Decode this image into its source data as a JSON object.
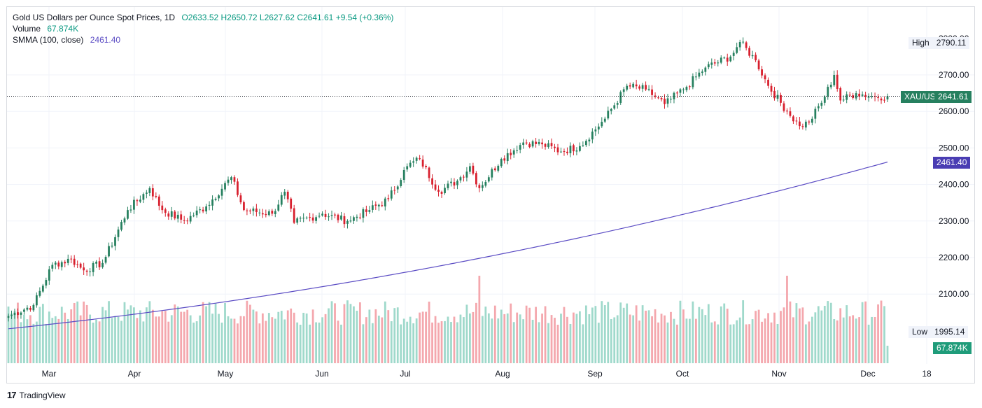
{
  "legend": {
    "title": "Gold US Dollars per Ounce Spot Prices, 1D",
    "open": "O2633.52",
    "high": "H2650.72",
    "low": "L2627.62",
    "close": "C2641.61",
    "change": "+9.54 (+0.36%)",
    "volume_label": "Volume",
    "volume_value": "67.874K",
    "smma_label": "SMMA (100, close)",
    "smma_value": "2461.40"
  },
  "price_axis": {
    "ticks": [
      "2700.00",
      "2600.00",
      "2500.00",
      "2400.00",
      "2300.00",
      "2200.00",
      "2100.00"
    ],
    "tick_values": [
      2700,
      2600,
      2500,
      2400,
      2300,
      2200,
      2100
    ]
  },
  "time_axis": {
    "labels": [
      "Mar",
      "Apr",
      "May",
      "Jun",
      "Jul",
      "Aug",
      "Sep",
      "Oct",
      "Nov",
      "Dec",
      "18"
    ]
  },
  "tags": {
    "high_label": "High",
    "high_value": "2790.11",
    "symbol": "XAU/USD",
    "last_price": "2641.61",
    "smma_value": "2461.40",
    "low_label": "Low",
    "low_value": "1995.14",
    "volume_value": "67.874K"
  },
  "colors": {
    "up": "#26805f",
    "down": "#d8202e",
    "volume_up": "#9fd9cb",
    "volume_down": "#f4a7ad",
    "smma": "#5b4cc4",
    "grid": "#f0f3fa"
  },
  "footer": {
    "brand": "TradingView"
  },
  "chart_data": {
    "type": "candlestick",
    "title": "Gold US Dollars per Ounce Spot Prices, 1D",
    "x_axis": [
      "Mar",
      "Apr",
      "May",
      "Jun",
      "Jul",
      "Aug",
      "Sep",
      "Oct",
      "Nov",
      "Dec",
      "18"
    ],
    "ylim": [
      1995.14,
      2790.11
    ],
    "anchors": [
      {
        "day": 0,
        "close": 2040
      },
      {
        "day": 8,
        "close": 2070
      },
      {
        "day": 14,
        "close": 2180
      },
      {
        "day": 20,
        "close": 2195
      },
      {
        "day": 24,
        "close": 2165
      },
      {
        "day": 30,
        "close": 2185
      },
      {
        "day": 38,
        "close": 2330
      },
      {
        "day": 45,
        "close": 2390
      },
      {
        "day": 49,
        "close": 2330
      },
      {
        "day": 56,
        "close": 2300
      },
      {
        "day": 63,
        "close": 2340
      },
      {
        "day": 71,
        "close": 2420
      },
      {
        "day": 75,
        "close": 2330
      },
      {
        "day": 84,
        "close": 2320
      },
      {
        "day": 88,
        "close": 2380
      },
      {
        "day": 91,
        "close": 2295
      },
      {
        "day": 100,
        "close": 2320
      },
      {
        "day": 108,
        "close": 2300
      },
      {
        "day": 115,
        "close": 2330
      },
      {
        "day": 121,
        "close": 2360
      },
      {
        "day": 127,
        "close": 2450
      },
      {
        "day": 131,
        "close": 2470
      },
      {
        "day": 137,
        "close": 2380
      },
      {
        "day": 143,
        "close": 2410
      },
      {
        "day": 147,
        "close": 2450
      },
      {
        "day": 150,
        "close": 2390
      },
      {
        "day": 157,
        "close": 2470
      },
      {
        "day": 164,
        "close": 2515
      },
      {
        "day": 170,
        "close": 2510
      },
      {
        "day": 176,
        "close": 2490
      },
      {
        "day": 182,
        "close": 2505
      },
      {
        "day": 190,
        "close": 2580
      },
      {
        "day": 197,
        "close": 2670
      },
      {
        "day": 203,
        "close": 2660
      },
      {
        "day": 209,
        "close": 2620
      },
      {
        "day": 215,
        "close": 2660
      },
      {
        "day": 222,
        "close": 2720
      },
      {
        "day": 230,
        "close": 2750
      },
      {
        "day": 233,
        "close": 2790
      },
      {
        "day": 238,
        "close": 2740
      },
      {
        "day": 242,
        "close": 2670
      },
      {
        "day": 248,
        "close": 2600
      },
      {
        "day": 252,
        "close": 2560
      },
      {
        "day": 255,
        "close": 2570
      },
      {
        "day": 260,
        "close": 2640
      },
      {
        "day": 263,
        "close": 2700
      },
      {
        "day": 265,
        "close": 2630
      },
      {
        "day": 270,
        "close": 2650
      },
      {
        "day": 276,
        "close": 2640
      },
      {
        "day": 280,
        "close": 2641.61
      }
    ],
    "last_volume": "67.874K",
    "smma": {
      "period": 100,
      "start": 2005,
      "end": 2461.4
    }
  }
}
